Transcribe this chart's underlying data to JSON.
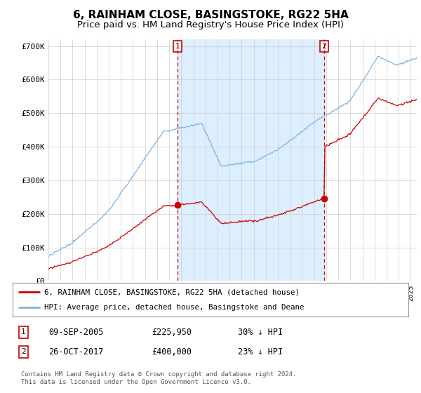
{
  "title": "6, RAINHAM CLOSE, BASINGSTOKE, RG22 5HA",
  "subtitle": "Price paid vs. HM Land Registry's House Price Index (HPI)",
  "ylim": [
    0,
    720000
  ],
  "yticks": [
    0,
    100000,
    200000,
    300000,
    400000,
    500000,
    600000,
    700000
  ],
  "ytick_labels": [
    "£0",
    "£100K",
    "£200K",
    "£300K",
    "£400K",
    "£500K",
    "£600K",
    "£700K"
  ],
  "hpi_color": "#7db4e0",
  "price_color": "#cc0000",
  "shade_color": "#ddeeff",
  "sale1_year": 2005.69,
  "sale2_year": 2017.83,
  "sale1_price": 225950,
  "sale2_price": 400000,
  "legend_entry1": "6, RAINHAM CLOSE, BASINGSTOKE, RG22 5HA (detached house)",
  "legend_entry2": "HPI: Average price, detached house, Basingstoke and Deane",
  "table_row1": [
    "1",
    "09-SEP-2005",
    "£225,950",
    "30% ↓ HPI"
  ],
  "table_row2": [
    "2",
    "26-OCT-2017",
    "£400,000",
    "23% ↓ HPI"
  ],
  "footnote": "Contains HM Land Registry data © Crown copyright and database right 2024.\nThis data is licensed under the Open Government Licence v3.0.",
  "bg_color": "#ffffff",
  "grid_color": "#cccccc",
  "title_fontsize": 11,
  "subtitle_fontsize": 9.5,
  "xstart": 1995,
  "xend": 2025.5
}
